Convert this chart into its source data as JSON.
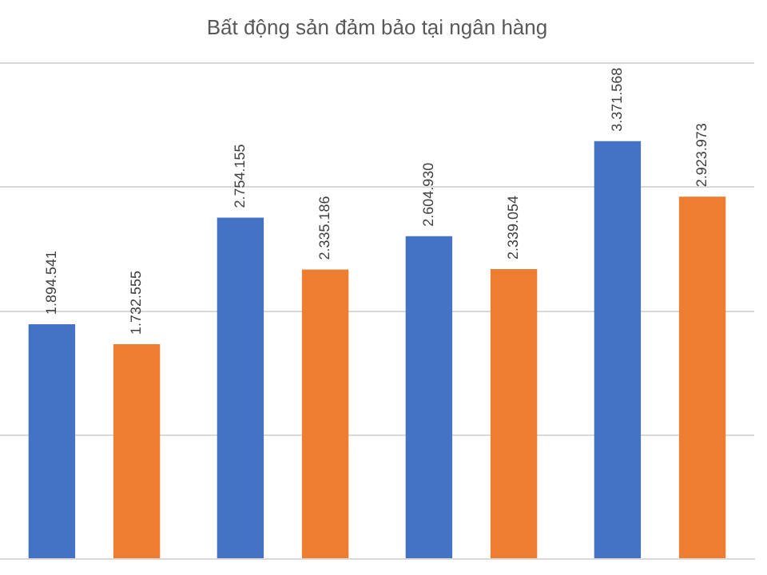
{
  "chart_data": {
    "type": "bar",
    "title": "Bất động sản đảm bảo tại ngân hàng",
    "categories": [
      null,
      null,
      null,
      null
    ],
    "series": [
      {
        "color": "#4472c4",
        "values": [
          1894541,
          2754155,
          2604930,
          3371568
        ],
        "value_labels": [
          "1.894.541",
          "2.754.155",
          "2.604.930",
          "3.371.568"
        ]
      },
      {
        "color": "#ed7d31",
        "values": [
          1732555,
          2335186,
          2339054,
          2923973
        ],
        "value_labels": [
          "1.732.555",
          "2.335.186",
          "2.339.054",
          "2.923.973"
        ]
      }
    ],
    "tick_labels": false,
    "grid": "y",
    "legend": false
  }
}
